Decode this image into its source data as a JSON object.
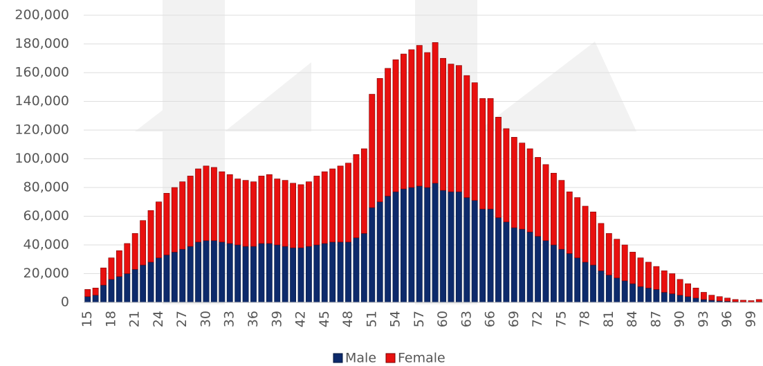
{
  "chart_data": {
    "type": "stacked_bar",
    "categories": [
      "15",
      null,
      null,
      "18",
      null,
      null,
      "21",
      null,
      null,
      "24",
      null,
      null,
      "27",
      null,
      null,
      "30",
      null,
      null,
      "33",
      null,
      null,
      "36",
      null,
      null,
      "39",
      null,
      null,
      "42",
      null,
      null,
      "45",
      null,
      null,
      "48",
      null,
      null,
      "51",
      null,
      null,
      "54",
      null,
      null,
      "57",
      null,
      null,
      "60",
      null,
      null,
      "63",
      null,
      null,
      "66",
      null,
      null,
      "69",
      null,
      null,
      "72",
      null,
      null,
      "75",
      null,
      null,
      "78",
      null,
      null,
      "81",
      null,
      null,
      "84",
      null,
      null,
      "87",
      null,
      null,
      "90",
      null,
      null,
      "93",
      null,
      null,
      "96",
      null,
      null,
      "99",
      null
    ],
    "series": [
      {
        "name": "Male",
        "color": "#0d2a6b",
        "values": [
          4000,
          5000,
          12000,
          16000,
          18000,
          20000,
          23000,
          26000,
          28000,
          31000,
          33000,
          35000,
          37000,
          39000,
          42000,
          43000,
          43000,
          42000,
          41000,
          40000,
          39000,
          39000,
          41000,
          41000,
          40000,
          39000,
          38000,
          38000,
          39000,
          40000,
          41000,
          42000,
          42000,
          42000,
          45000,
          48000,
          66000,
          70000,
          74000,
          77000,
          79000,
          80000,
          81000,
          80000,
          83000,
          78000,
          77000,
          77000,
          73000,
          71000,
          65000,
          65000,
          59000,
          56000,
          52000,
          51000,
          49000,
          46000,
          43000,
          40000,
          37000,
          34000,
          31000,
          28000,
          26000,
          22000,
          19000,
          17000,
          15000,
          13000,
          11000,
          10000,
          9000,
          7000,
          6000,
          5000,
          4000,
          3000,
          2000,
          1500,
          1000,
          800,
          500,
          300,
          200,
          400
        ]
      },
      {
        "name": "Female",
        "color": "#e8100f",
        "values": [
          5000,
          5000,
          12000,
          15000,
          18000,
          21000,
          25000,
          31000,
          36000,
          39000,
          43000,
          45000,
          47000,
          49000,
          51000,
          52000,
          51000,
          49000,
          48000,
          46000,
          46000,
          45000,
          47000,
          48000,
          46000,
          46000,
          45000,
          44000,
          45000,
          48000,
          50000,
          51000,
          53000,
          55000,
          58000,
          59000,
          79000,
          86000,
          89000,
          92000,
          94000,
          96000,
          98000,
          94000,
          98000,
          92000,
          89000,
          88000,
          85000,
          82000,
          77000,
          77000,
          70000,
          65000,
          63000,
          60000,
          58000,
          55000,
          53000,
          50000,
          48000,
          43000,
          42000,
          39000,
          37000,
          33000,
          29000,
          27000,
          25000,
          22000,
          20000,
          18000,
          16000,
          15000,
          14000,
          11000,
          9000,
          7000,
          5000,
          3500,
          3000,
          2200,
          1500,
          1200,
          1000,
          1600
        ]
      }
    ],
    "ylim": [
      0,
      200000
    ],
    "yticks": [
      0,
      {
        "value": 20000,
        "label": "20,000"
      },
      {
        "value": 40000,
        "label": "40,000"
      },
      {
        "value": 60000,
        "label": "60,000"
      },
      {
        "value": 80000,
        "label": "80,000"
      },
      {
        "value": 100000,
        "label": "100,000"
      },
      {
        "value": 120000,
        "label": "120,000"
      },
      {
        "value": 140000,
        "label": "140,000"
      },
      {
        "value": 160000,
        "label": "160,000"
      },
      {
        "value": 180000,
        "label": "180,000"
      },
      {
        "value": 200000,
        "label": "200,000"
      }
    ],
    "grid": true,
    "legend": "bottom"
  }
}
